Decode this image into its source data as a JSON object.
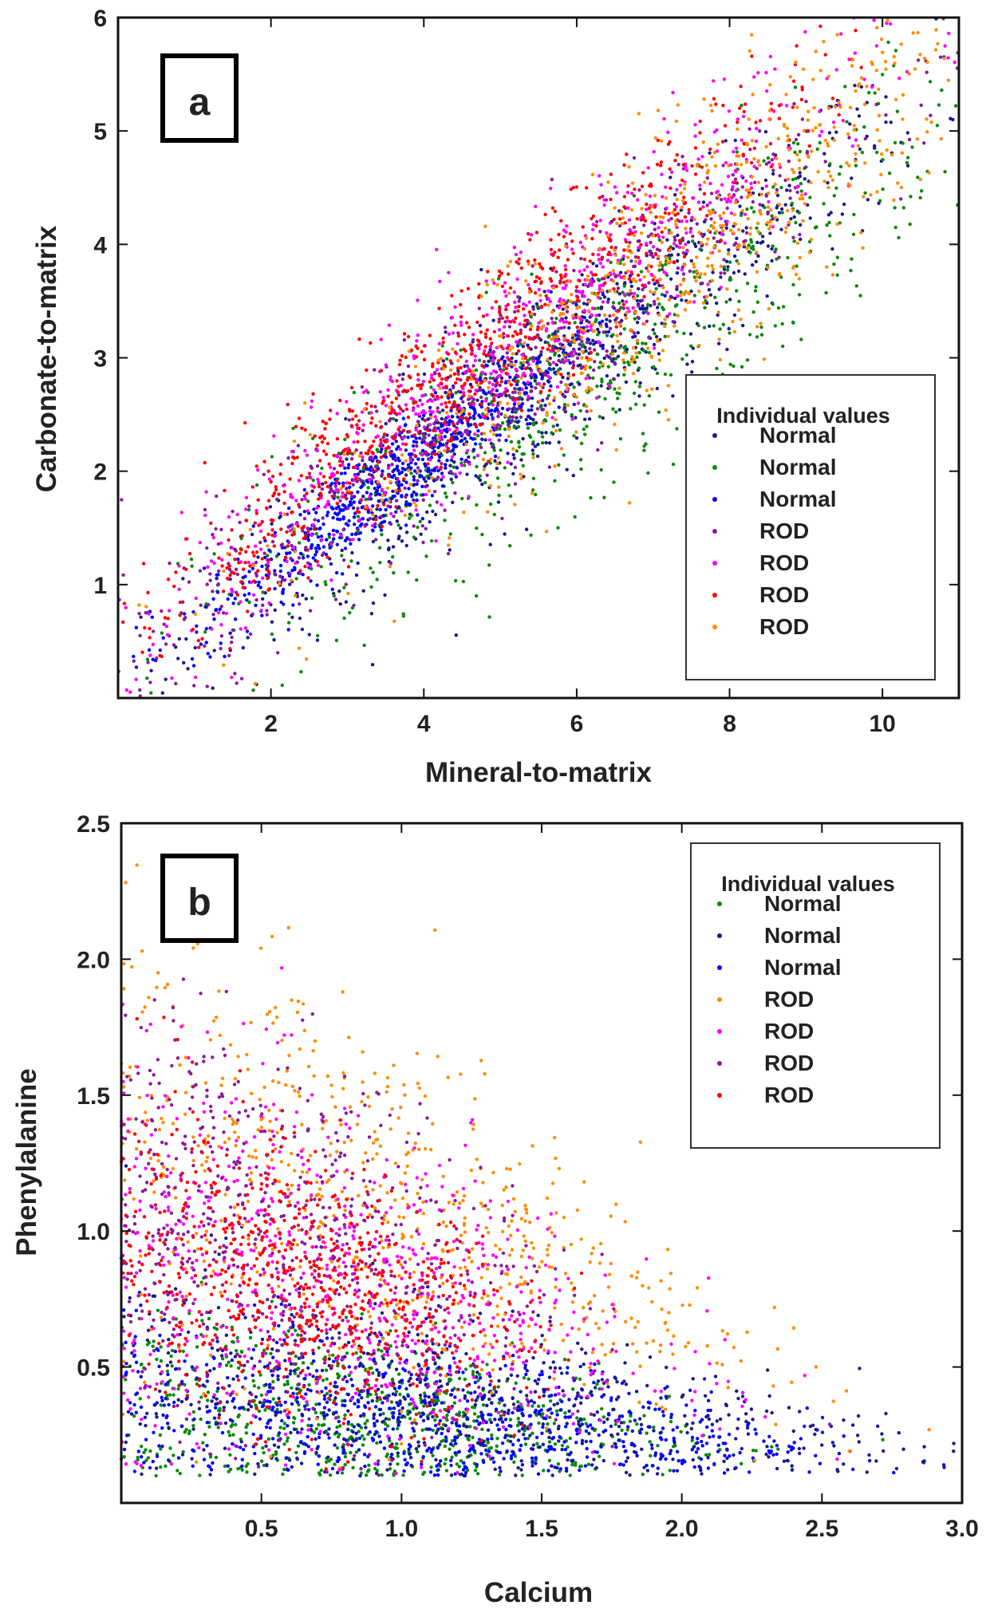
{
  "chart_data": [
    {
      "panel": "a",
      "type": "scatter",
      "xlabel": "Mineral-to-matrix",
      "ylabel": "Carbonate-to-matrix",
      "xlim": [
        0,
        11
      ],
      "ylim": [
        0,
        6
      ],
      "xticks": [
        2,
        4,
        6,
        8,
        10
      ],
      "yticks": [
        1,
        2,
        3,
        4,
        5,
        6
      ],
      "legend": {
        "title": "Individual values",
        "placement": "middle-right",
        "entries": [
          {
            "label": "Normal",
            "color": "#1a1a8c"
          },
          {
            "label": "Normal",
            "color": "#0a8a0a"
          },
          {
            "label": "Normal",
            "color": "#0000ff"
          },
          {
            "label": "ROD",
            "color": "#8b1a9b"
          },
          {
            "label": "ROD",
            "color": "#ff00ff"
          },
          {
            "label": "ROD",
            "color": "#ff0000"
          },
          {
            "label": "ROD",
            "color": "#ff8c00"
          }
        ]
      },
      "series": [
        {
          "name": "Normal",
          "color": "#1a1a8c",
          "trend": {
            "slope": 0.48,
            "intercept": 0.12
          },
          "x_center": 5.8,
          "x_spread": 2.4,
          "y_noise": 0.42
        },
        {
          "name": "Normal",
          "color": "#0a8a0a",
          "trend": {
            "slope": 0.45,
            "intercept": 0.1
          },
          "x_center": 6.0,
          "x_spread": 2.5,
          "y_noise": 0.5
        },
        {
          "name": "Normal",
          "color": "#0000ff",
          "trend": {
            "slope": 0.5,
            "intercept": 0.15
          },
          "x_center": 3.6,
          "x_spread": 1.3,
          "y_noise": 0.22
        },
        {
          "name": "ROD",
          "color": "#8b1a9b",
          "trend": {
            "slope": 0.5,
            "intercept": 0.3
          },
          "x_center": 4.8,
          "x_spread": 2.4,
          "y_noise": 0.4
        },
        {
          "name": "ROD",
          "color": "#ff00ff",
          "trend": {
            "slope": 0.52,
            "intercept": 0.4
          },
          "x_center": 5.2,
          "x_spread": 2.5,
          "y_noise": 0.42
        },
        {
          "name": "ROD",
          "color": "#ff0000",
          "trend": {
            "slope": 0.55,
            "intercept": 0.45
          },
          "x_center": 4.4,
          "x_spread": 2.2,
          "y_noise": 0.35
        },
        {
          "name": "ROD",
          "color": "#ff8c00",
          "trend": {
            "slope": 0.5,
            "intercept": 0.2
          },
          "x_center": 7.5,
          "x_spread": 2.4,
          "y_noise": 0.55
        }
      ]
    },
    {
      "panel": "b",
      "type": "scatter",
      "xlabel": "Calcium",
      "ylabel": "Phenylalanine",
      "xlim": [
        0,
        3
      ],
      "ylim": [
        0,
        2.5
      ],
      "xticks": [
        "0.5",
        "1.0",
        "1.5",
        "2.0",
        "2.5",
        "3.0"
      ],
      "yticks": [
        "0.5",
        "1.0",
        "1.5",
        "2.0",
        "2.5"
      ],
      "legend": {
        "title": "Individual values",
        "placement": "top-right",
        "entries": [
          {
            "label": "Normal",
            "color": "#0a8a0a"
          },
          {
            "label": "Normal",
            "color": "#1a1a8c"
          },
          {
            "label": "Normal",
            "color": "#0000ff"
          },
          {
            "label": "ROD",
            "color": "#ff8c00"
          },
          {
            "label": "ROD",
            "color": "#ff00ff"
          },
          {
            "label": "ROD",
            "color": "#8b1a9b"
          },
          {
            "label": "ROD",
            "color": "#ff0000"
          }
        ]
      },
      "series": [
        {
          "name": "Normal",
          "color": "#0a8a0a",
          "x_center": 0.9,
          "x_spread": 0.55,
          "y_center": 0.3,
          "y_spread": 0.2
        },
        {
          "name": "Normal",
          "color": "#1a1a8c",
          "x_center": 1.2,
          "x_spread": 0.75,
          "y_center": 0.4,
          "y_spread": 0.25
        },
        {
          "name": "Normal",
          "color": "#0000ff",
          "x_center": 1.1,
          "x_spread": 0.7,
          "y_center": 0.3,
          "y_spread": 0.2
        },
        {
          "name": "ROD",
          "color": "#ff8c00",
          "x_center": 0.9,
          "x_spread": 0.6,
          "y_center": 1.3,
          "y_spread": 0.45
        },
        {
          "name": "ROD",
          "color": "#ff00ff",
          "x_center": 0.8,
          "x_spread": 0.55,
          "y_center": 0.9,
          "y_spread": 0.4
        },
        {
          "name": "ROD",
          "color": "#8b1a9b",
          "x_center": 0.6,
          "x_spread": 0.45,
          "y_center": 1.0,
          "y_spread": 0.4
        },
        {
          "name": "ROD",
          "color": "#ff0000",
          "x_center": 0.65,
          "x_spread": 0.4,
          "y_center": 0.85,
          "y_spread": 0.3
        }
      ]
    }
  ]
}
